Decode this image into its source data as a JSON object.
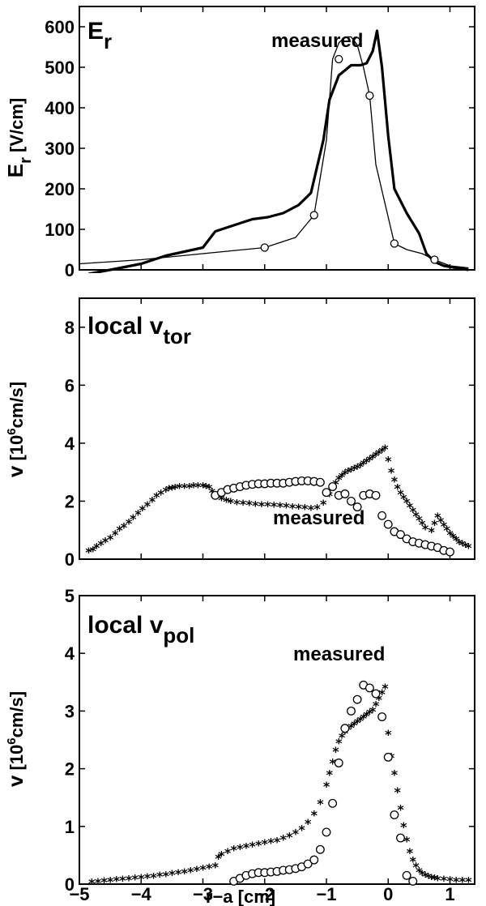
{
  "chart_data": [
    {
      "type": "line",
      "panel_label": "E",
      "panel_label_sub": "r",
      "annotation": "measured",
      "ylabel_main": "E",
      "ylabel_sub": "r",
      "ylabel_unit": "[V/cm]",
      "xlim": [
        -5,
        1.4
      ],
      "ylim": [
        0,
        650
      ],
      "yticks": [
        0,
        100,
        200,
        300,
        400,
        500,
        600
      ],
      "xticks": [
        -5,
        -4,
        -3,
        -2,
        -1,
        0,
        1
      ],
      "show_xticklabels": false,
      "series": [
        {
          "style": "thick-line",
          "x": [
            -4.85,
            -4.5,
            -4.0,
            -3.6,
            -3.3,
            -3.0,
            -2.95,
            -2.8,
            -2.5,
            -2.2,
            -1.95,
            -1.7,
            -1.45,
            -1.25,
            -1.05,
            -0.95,
            -0.8,
            -0.6,
            -0.45,
            -0.35,
            -0.25,
            -0.18,
            -0.1,
            0.0,
            0.1,
            0.3,
            0.5,
            0.62,
            0.75,
            0.9,
            1.1,
            1.3
          ],
          "y": [
            -10,
            0,
            15,
            35,
            45,
            55,
            65,
            95,
            110,
            125,
            130,
            140,
            160,
            190,
            320,
            420,
            480,
            505,
            505,
            510,
            540,
            590,
            500,
            330,
            200,
            140,
            90,
            40,
            20,
            10,
            5,
            0
          ]
        },
        {
          "style": "thin-line-circles",
          "x": [
            -5.0,
            -4.0,
            -3.0,
            -2.0,
            -1.5,
            -1.2,
            -1.0,
            -0.9,
            -0.8,
            -0.7,
            -0.6,
            -0.5,
            -0.4,
            -0.3,
            -0.2,
            0.1,
            0.3,
            0.55,
            0.75,
            1.0,
            1.3
          ],
          "y": [
            15,
            25,
            40,
            55,
            80,
            135,
            320,
            520,
            560,
            575,
            575,
            555,
            500,
            430,
            260,
            65,
            50,
            40,
            25,
            10,
            5
          ],
          "marker_x": [
            -2.0,
            -1.2,
            -0.8,
            -0.3,
            0.1,
            0.75
          ],
          "marker_y": [
            55,
            135,
            520,
            430,
            65,
            25
          ]
        }
      ]
    },
    {
      "type": "scatter",
      "panel_label": "local v",
      "panel_label_sub": "tor",
      "annotation": "measured",
      "ylabel_main": "v",
      "ylabel_unit_pre": "[10",
      "ylabel_unit_sup": "6",
      "ylabel_unit_post": "cm/s]",
      "xlim": [
        -5,
        1.4
      ],
      "ylim": [
        0,
        9
      ],
      "yticks": [
        0,
        2,
        4,
        6,
        8
      ],
      "xticks": [
        -5,
        -4,
        -3,
        -2,
        -1,
        0,
        1
      ],
      "show_xticklabels": false,
      "series": [
        {
          "style": "stars",
          "x": [
            -4.85,
            -4.78,
            -4.72,
            -4.65,
            -4.58,
            -4.5,
            -4.42,
            -4.35,
            -4.28,
            -4.2,
            -4.13,
            -4.05,
            -3.98,
            -3.9,
            -3.82,
            -3.75,
            -3.68,
            -3.6,
            -3.55,
            -3.5,
            -3.45,
            -3.38,
            -3.3,
            -3.22,
            -3.15,
            -3.08,
            -3.0,
            -2.95,
            -2.9,
            -2.85,
            -2.8,
            -2.75,
            -2.7,
            -2.62,
            -2.55,
            -2.45,
            -2.35,
            -2.25,
            -2.15,
            -2.05,
            -1.95,
            -1.85,
            -1.75,
            -1.65,
            -1.55,
            -1.45,
            -1.35,
            -1.25,
            -1.15,
            -1.05,
            -0.95,
            -0.9,
            -0.85,
            -0.8,
            -0.75,
            -0.7,
            -0.65,
            -0.6,
            -0.55,
            -0.5,
            -0.45,
            -0.4,
            -0.35,
            -0.3,
            -0.25,
            -0.2,
            -0.15,
            -0.1,
            -0.05,
            0.0,
            0.05,
            0.1,
            0.15,
            0.2,
            0.25,
            0.3,
            0.35,
            0.4,
            0.45,
            0.5,
            0.55,
            0.6,
            0.7,
            0.75,
            0.8,
            0.85,
            0.9,
            0.95,
            1.0,
            1.05,
            1.1,
            1.15,
            1.2,
            1.25,
            1.3
          ],
          "y": [
            0.25,
            0.3,
            0.4,
            0.5,
            0.6,
            0.7,
            0.85,
            1.0,
            1.1,
            1.25,
            1.4,
            1.55,
            1.7,
            1.85,
            2.0,
            2.15,
            2.25,
            2.35,
            2.4,
            2.42,
            2.45,
            2.47,
            2.48,
            2.48,
            2.5,
            2.5,
            2.5,
            2.48,
            2.45,
            2.3,
            2.2,
            2.15,
            2.05,
            2.0,
            1.95,
            1.92,
            1.9,
            1.88,
            1.86,
            1.85,
            1.84,
            1.83,
            1.82,
            1.8,
            1.78,
            1.76,
            1.74,
            1.72,
            1.75,
            1.9,
            2.2,
            2.45,
            2.6,
            2.75,
            2.85,
            2.95,
            3.0,
            3.05,
            3.1,
            3.15,
            3.2,
            3.28,
            3.35,
            3.42,
            3.5,
            3.58,
            3.65,
            3.72,
            3.8,
            3.4,
            3.0,
            2.7,
            2.45,
            2.25,
            2.1,
            1.95,
            1.8,
            1.65,
            1.5,
            1.35,
            1.2,
            1.05,
            0.95,
            1.2,
            1.45,
            1.3,
            1.15,
            1.0,
            0.85,
            0.75,
            0.65,
            0.55,
            0.5,
            0.45,
            0.4
          ]
        },
        {
          "style": "circles",
          "x": [
            -2.8,
            -2.7,
            -2.6,
            -2.5,
            -2.4,
            -2.3,
            -2.2,
            -2.1,
            -2.0,
            -1.9,
            -1.8,
            -1.7,
            -1.6,
            -1.5,
            -1.4,
            -1.3,
            -1.2,
            -1.1,
            -1.0,
            -0.9,
            -0.8,
            -0.7,
            -0.6,
            -0.5,
            -0.4,
            -0.3,
            -0.2,
            -0.1,
            0.0,
            0.1,
            0.2,
            0.3,
            0.4,
            0.5,
            0.6,
            0.7,
            0.8,
            0.9,
            1.0
          ],
          "y": [
            2.2,
            2.3,
            2.4,
            2.45,
            2.5,
            2.55,
            2.58,
            2.6,
            2.6,
            2.62,
            2.62,
            2.62,
            2.65,
            2.68,
            2.7,
            2.7,
            2.68,
            2.65,
            2.3,
            2.5,
            2.2,
            2.25,
            2.0,
            1.8,
            2.2,
            2.25,
            2.2,
            1.5,
            1.2,
            0.95,
            0.85,
            0.7,
            0.6,
            0.55,
            0.5,
            0.45,
            0.4,
            0.3,
            0.25
          ]
        }
      ]
    },
    {
      "type": "scatter",
      "panel_label": "local v",
      "panel_label_sub": "pol",
      "annotation": "measured",
      "ylabel_main": "v",
      "ylabel_unit_pre": "[10",
      "ylabel_unit_sup": "6",
      "ylabel_unit_post": "cm/s]",
      "xlabel": "r−a [cm]",
      "xlim": [
        -5,
        1.4
      ],
      "ylim": [
        0,
        5
      ],
      "yticks": [
        0,
        1,
        2,
        3,
        4,
        5
      ],
      "xticks": [
        -5,
        -4,
        -3,
        -2,
        -1,
        0,
        1
      ],
      "show_xticklabels": true,
      "series": [
        {
          "style": "stars",
          "x": [
            -4.8,
            -4.7,
            -4.6,
            -4.5,
            -4.4,
            -4.3,
            -4.2,
            -4.1,
            -4.0,
            -3.9,
            -3.8,
            -3.7,
            -3.6,
            -3.5,
            -3.4,
            -3.3,
            -3.2,
            -3.1,
            -3.0,
            -2.9,
            -2.8,
            -2.75,
            -2.7,
            -2.6,
            -2.5,
            -2.4,
            -2.3,
            -2.2,
            -2.1,
            -2.0,
            -1.9,
            -1.8,
            -1.7,
            -1.6,
            -1.5,
            -1.4,
            -1.3,
            -1.2,
            -1.1,
            -1.0,
            -0.95,
            -0.9,
            -0.85,
            -0.8,
            -0.75,
            -0.7,
            -0.65,
            -0.6,
            -0.55,
            -0.5,
            -0.45,
            -0.4,
            -0.35,
            -0.3,
            -0.25,
            -0.2,
            -0.15,
            -0.1,
            -0.05,
            0.0,
            0.05,
            0.1,
            0.15,
            0.2,
            0.25,
            0.3,
            0.35,
            0.4,
            0.45,
            0.5,
            0.55,
            0.6,
            0.65,
            0.7,
            0.75,
            0.8,
            0.9,
            1.0,
            1.1,
            1.2,
            1.3
          ],
          "y": [
            0.02,
            0.03,
            0.04,
            0.05,
            0.06,
            0.07,
            0.08,
            0.09,
            0.1,
            0.11,
            0.12,
            0.14,
            0.15,
            0.17,
            0.18,
            0.2,
            0.22,
            0.24,
            0.26,
            0.28,
            0.3,
            0.45,
            0.5,
            0.55,
            0.6,
            0.62,
            0.64,
            0.66,
            0.68,
            0.7,
            0.72,
            0.74,
            0.78,
            0.82,
            0.88,
            0.95,
            1.05,
            1.2,
            1.4,
            1.7,
            1.9,
            2.1,
            2.3,
            2.45,
            2.55,
            2.62,
            2.68,
            2.72,
            2.76,
            2.8,
            2.84,
            2.88,
            2.92,
            2.96,
            3.0,
            3.1,
            3.2,
            3.3,
            3.4,
            2.6,
            2.2,
            1.9,
            1.6,
            1.3,
            1.0,
            0.75,
            0.55,
            0.4,
            0.3,
            0.22,
            0.17,
            0.14,
            0.12,
            0.1,
            0.09,
            0.08,
            0.07,
            0.06,
            0.05,
            0.05,
            0.05
          ]
        },
        {
          "style": "circles",
          "x": [
            -2.5,
            -2.4,
            -2.3,
            -2.2,
            -2.1,
            -2.0,
            -1.9,
            -1.8,
            -1.7,
            -1.6,
            -1.5,
            -1.4,
            -1.3,
            -1.2,
            -1.1,
            -1.0,
            -0.9,
            -0.8,
            -0.7,
            -0.6,
            -0.5,
            -0.4,
            -0.3,
            -0.2,
            -0.1,
            0.0,
            0.1,
            0.2,
            0.3,
            0.4
          ],
          "y": [
            0.05,
            0.1,
            0.15,
            0.18,
            0.2,
            0.2,
            0.21,
            0.22,
            0.24,
            0.25,
            0.27,
            0.3,
            0.35,
            0.42,
            0.6,
            0.9,
            1.4,
            2.1,
            2.7,
            3.0,
            3.2,
            3.45,
            3.4,
            3.3,
            2.9,
            2.2,
            1.2,
            0.8,
            0.15,
            0.05
          ]
        }
      ]
    }
  ]
}
